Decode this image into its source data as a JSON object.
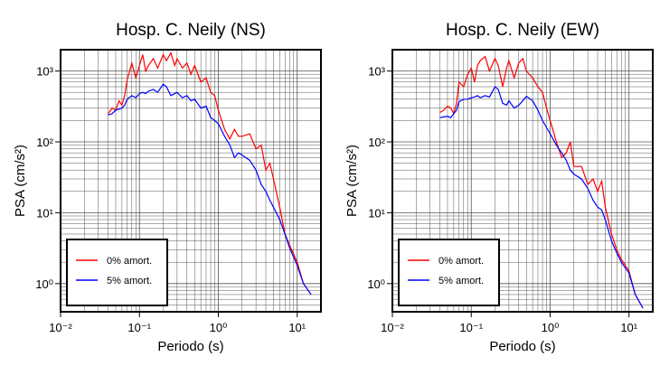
{
  "chart_data": [
    {
      "type": "line",
      "title": "Hosp. C. Neily (NS)",
      "xlabel": "Periodo (s)",
      "ylabel": "PSA (cm/s²)",
      "xscale": "log",
      "yscale": "log",
      "grid": true,
      "legend": "lower left",
      "xlim": [
        0.01,
        20
      ],
      "ylim": [
        0.4,
        2000
      ],
      "xticks": [
        {
          "value": 0.01,
          "label": "10⁻²"
        },
        {
          "value": 0.1,
          "label": "10⁻¹"
        },
        {
          "value": 1,
          "label": "10⁰"
        },
        {
          "value": 10,
          "label": "10¹"
        }
      ],
      "yticks": [
        {
          "value": 1,
          "label": "10⁰"
        },
        {
          "value": 10,
          "label": "10¹"
        },
        {
          "value": 100,
          "label": "10²"
        },
        {
          "value": 1000,
          "label": "10³"
        }
      ],
      "x": [
        0.04,
        0.045,
        0.05,
        0.055,
        0.06,
        0.065,
        0.07,
        0.08,
        0.09,
        0.1,
        0.11,
        0.12,
        0.13,
        0.15,
        0.17,
        0.2,
        0.22,
        0.25,
        0.28,
        0.3,
        0.35,
        0.4,
        0.45,
        0.5,
        0.6,
        0.7,
        0.8,
        0.9,
        1.0,
        1.2,
        1.4,
        1.6,
        1.8,
        2.0,
        2.5,
        3.0,
        3.5,
        4.0,
        4.5,
        5.0,
        6.0,
        7.0,
        8.0,
        10,
        12,
        15
      ],
      "series": [
        {
          "name": "0% amort.",
          "color": "#ff0000",
          "values": [
            250,
            300,
            280,
            380,
            330,
            450,
            750,
            1300,
            800,
            1200,
            1700,
            1000,
            1200,
            1500,
            1100,
            1700,
            1400,
            1800,
            1200,
            1500,
            1100,
            1300,
            900,
            1200,
            700,
            800,
            500,
            450,
            280,
            150,
            110,
            150,
            120,
            120,
            130,
            80,
            90,
            40,
            50,
            30,
            12,
            5,
            3.5,
            2,
            1,
            0.7
          ]
        },
        {
          "name": "5% amort.",
          "color": "#0000ff",
          "values": [
            240,
            250,
            280,
            290,
            300,
            330,
            400,
            450,
            420,
            480,
            500,
            480,
            520,
            550,
            500,
            650,
            600,
            450,
            480,
            500,
            420,
            450,
            380,
            400,
            300,
            320,
            220,
            200,
            180,
            120,
            90,
            60,
            70,
            65,
            55,
            40,
            25,
            20,
            15,
            12,
            8,
            5,
            3.2,
            1.8,
            1,
            0.7
          ]
        }
      ]
    },
    {
      "type": "line",
      "title": "Hosp. C. Neily (EW)",
      "xlabel": "Periodo (s)",
      "ylabel": "PSA (cm/s²)",
      "xscale": "log",
      "yscale": "log",
      "grid": true,
      "legend": "lower left",
      "xlim": [
        0.01,
        20
      ],
      "ylim": [
        0.4,
        2000
      ],
      "xticks": [
        {
          "value": 0.01,
          "label": "10⁻²"
        },
        {
          "value": 0.1,
          "label": "10⁻¹"
        },
        {
          "value": 1,
          "label": "10⁰"
        },
        {
          "value": 10,
          "label": "10¹"
        }
      ],
      "yticks": [
        {
          "value": 1,
          "label": "10⁰"
        },
        {
          "value": 10,
          "label": "10¹"
        },
        {
          "value": 100,
          "label": "10²"
        },
        {
          "value": 1000,
          "label": "10³"
        }
      ],
      "x": [
        0.04,
        0.045,
        0.05,
        0.055,
        0.06,
        0.065,
        0.07,
        0.08,
        0.09,
        0.1,
        0.11,
        0.12,
        0.13,
        0.15,
        0.17,
        0.2,
        0.22,
        0.25,
        0.28,
        0.3,
        0.35,
        0.4,
        0.45,
        0.5,
        0.6,
        0.7,
        0.8,
        0.9,
        1.0,
        1.2,
        1.4,
        1.6,
        1.8,
        2.0,
        2.5,
        3.0,
        3.5,
        4.0,
        4.5,
        5.0,
        6.0,
        7.0,
        8.0,
        10,
        12,
        15
      ],
      "series": [
        {
          "name": "0% amort.",
          "color": "#ff0000",
          "values": [
            260,
            280,
            320,
            300,
            250,
            350,
            700,
            600,
            900,
            1100,
            700,
            1200,
            1400,
            1600,
            1000,
            1500,
            1200,
            600,
            1100,
            1400,
            800,
            1300,
            1500,
            1000,
            800,
            600,
            500,
            300,
            200,
            100,
            60,
            70,
            100,
            45,
            45,
            25,
            30,
            20,
            28,
            12,
            5,
            3,
            2.2,
            1.5,
            0.7,
            0.45
          ]
        },
        {
          "name": "5% amort.",
          "color": "#0000ff",
          "values": [
            220,
            225,
            230,
            220,
            250,
            280,
            370,
            400,
            400,
            420,
            430,
            450,
            420,
            450,
            430,
            600,
            550,
            350,
            330,
            380,
            300,
            330,
            380,
            440,
            380,
            280,
            200,
            160,
            130,
            90,
            70,
            55,
            40,
            35,
            30,
            22,
            15,
            12,
            11,
            8,
            4,
            2.7,
            2,
            1.4,
            0.7,
            0.45
          ]
        }
      ]
    }
  ]
}
